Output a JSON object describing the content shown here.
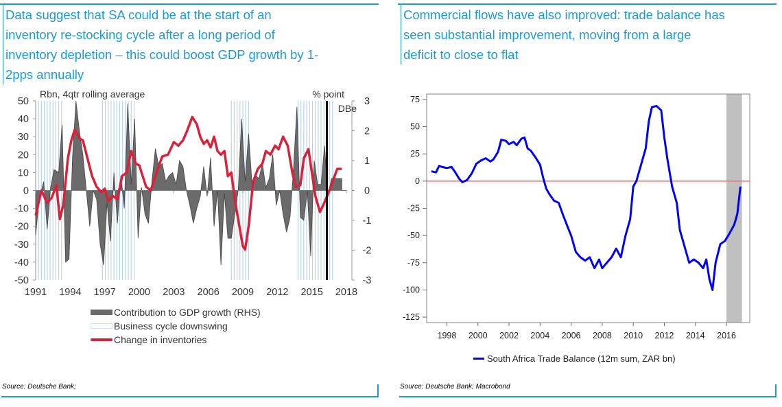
{
  "left_panel": {
    "title": "Data suggest that SA could be at the start of an inventory re-stocking cycle after a long period of inventory depletion – this could boost GDP growth by 1-2pps annually",
    "title_lines": [
      "Data suggest that SA could be at the start of an",
      "inventory re-stocking cycle after a long period of",
      "inventory depletion – this could boost GDP growth by 1-",
      "2pps annually"
    ],
    "source": "Source: Deutsche Bank;"
  },
  "right_panel": {
    "title_lines": [
      "Commercial flows have also improved: trade balance has",
      "seen substantial improvement, moving from a large",
      "deficit to close to flat"
    ],
    "source": "Source: Deutsche Bank; Macrobond"
  },
  "colors": {
    "accent": "#1a9bd7",
    "inventories_line": "#d9213a",
    "contribution_area": "#6b6b6b",
    "downswing_bands": "#b9d3ee",
    "trade_line": "#0000ff",
    "zero_line": "#ff6b6b",
    "forecast_shade": "#c0c0c0"
  },
  "chart_data": [
    {
      "type": "line",
      "subtype": "line + area (dual axis)",
      "ylabel_left": "Rbn, 4qtr rolling average",
      "ylabel_right": "% point",
      "annotation": "DBe",
      "ylim_left": [
        -50,
        50
      ],
      "ylim_right": [
        -3,
        3
      ],
      "yticks_left": [
        50,
        40,
        30,
        20,
        10,
        0,
        -10,
        -20,
        -30,
        -40,
        -50
      ],
      "yticks_right": [
        3,
        2,
        1,
        0,
        -1,
        -2,
        -3
      ],
      "xticks": [
        "1991",
        "1994",
        "1997",
        "2000",
        "2003",
        "2006",
        "2009",
        "2012",
        "2015",
        "2018"
      ],
      "xlim": [
        1991,
        2018
      ],
      "forecast_marker_x": 2016.3,
      "downswing_periods": [
        [
          1991.0,
          1993.3
        ],
        [
          1996.8,
          1999.6
        ],
        [
          2008.0,
          2009.5
        ],
        [
          2013.8,
          2016.8
        ]
      ],
      "legend": [
        "Contribution to GDP growth (RHS)",
        "Business cycle downswing",
        "Change in inventories"
      ],
      "series": [
        {
          "name": "Change in inventories",
          "axis": "left",
          "x": [
            1991.0,
            1991.5,
            1992.0,
            1992.4,
            1992.8,
            1993.1,
            1993.4,
            1993.8,
            1994.1,
            1994.4,
            1994.8,
            1995.1,
            1995.5,
            1995.9,
            1996.3,
            1996.7,
            1997.0,
            1997.3,
            1997.7,
            1998.1,
            1998.5,
            1998.9,
            1999.3,
            1999.7,
            2000.0,
            2000.3,
            2000.6,
            2001.0,
            2001.5,
            2002.0,
            2002.5,
            2003.0,
            2003.4,
            2003.8,
            2004.2,
            2004.6,
            2005.0,
            2005.3,
            2005.6,
            2005.9,
            2006.2,
            2006.5,
            2006.8,
            2007.1,
            2007.4,
            2007.7,
            2008.0,
            2008.3,
            2008.7,
            2009.0,
            2009.2,
            2009.5,
            2009.9,
            2010.3,
            2010.7,
            2011.0,
            2011.4,
            2011.8,
            2012.1,
            2012.5,
            2012.9,
            2013.3,
            2013.6,
            2014.0,
            2014.3,
            2014.7,
            2015.0,
            2015.3,
            2015.7,
            2016.0,
            2016.4,
            2016.8,
            2017.2,
            2017.6
          ],
          "values": [
            -14,
            0,
            -7,
            -4,
            3,
            -16,
            -8,
            18,
            28,
            34,
            29,
            28,
            18,
            8,
            2,
            -1,
            1,
            -6,
            -3,
            -5,
            8,
            10,
            22,
            15,
            14,
            8,
            2,
            0,
            10,
            19,
            20,
            27,
            25,
            28,
            34,
            41,
            37,
            30,
            26,
            28,
            24,
            30,
            22,
            20,
            22,
            8,
            10,
            -5,
            -20,
            -31,
            -33,
            -20,
            5,
            12,
            15,
            22,
            20,
            25,
            23,
            30,
            25,
            10,
            2,
            3,
            18,
            23,
            10,
            -3,
            -12,
            -8,
            -2,
            5,
            12,
            12
          ]
        },
        {
          "name": "Contribution to GDP growth (RHS)",
          "axis": "right",
          "type": "area",
          "x": [
            1991.0,
            1991.3,
            1991.7,
            1992.0,
            1992.3,
            1992.6,
            1993.0,
            1993.3,
            1993.6,
            1993.9,
            1994.2,
            1994.5,
            1994.8,
            1995.1,
            1995.4,
            1995.7,
            1996.0,
            1996.3,
            1996.6,
            1996.9,
            1997.2,
            1997.5,
            1997.8,
            1998.1,
            1998.4,
            1998.7,
            1999.0,
            1999.3,
            1999.6,
            1999.9,
            2000.2,
            2000.5,
            2000.8,
            2001.1,
            2001.4,
            2001.7,
            2002.0,
            2002.3,
            2002.6,
            2002.9,
            2003.2,
            2003.5,
            2003.8,
            2004.1,
            2004.4,
            2004.7,
            2005.0,
            2005.3,
            2005.6,
            2005.9,
            2006.2,
            2006.5,
            2006.8,
            2007.1,
            2007.4,
            2007.7,
            2008.0,
            2008.3,
            2008.6,
            2008.9,
            2009.2,
            2009.5,
            2009.8,
            2010.1,
            2010.4,
            2010.7,
            2011.0,
            2011.3,
            2011.6,
            2011.9,
            2012.2,
            2012.5,
            2012.8,
            2013.1,
            2013.4,
            2013.7,
            2014.0,
            2014.3,
            2014.6,
            2014.9,
            2015.2,
            2015.5,
            2015.8,
            2016.1,
            2016.4,
            2016.7,
            2017.0,
            2017.3,
            2017.6
          ],
          "values": [
            -1.5,
            -0.3,
            0.3,
            -1.3,
            0.1,
            0.7,
            0.6,
            2.2,
            -2.4,
            -2.3,
            1.1,
            3.0,
            2.0,
            1.2,
            0.0,
            -1.2,
            0.0,
            -0.3,
            -1.8,
            -2.5,
            -0.4,
            -1.7,
            0.6,
            -1.1,
            0.5,
            -0.6,
            2.9,
            0.2,
            2.4,
            -1.6,
            0.1,
            -0.8,
            -1.1,
            0.3,
            1.4,
            0.8,
            0.9,
            0.3,
            0.5,
            0.6,
            0.2,
            1.0,
            0.8,
            0.0,
            -0.5,
            -1.1,
            -0.6,
            -0.2,
            0.8,
            -0.2,
            1.1,
            -1.2,
            0.0,
            -2.5,
            -0.1,
            -1.6,
            -1.6,
            -0.8,
            0.0,
            2.4,
            0.3,
            1.9,
            0.2,
            0.5,
            0.4,
            0.9,
            0.1,
            0.4,
            1.2,
            -0.5,
            0.0,
            -0.8,
            -1.4,
            -0.9,
            0.7,
            2.8,
            -0.9,
            -1.0,
            0.0,
            -2.2,
            1.0,
            0.2,
            0.2,
            1.5,
            -0.2,
            0.4,
            0.4,
            0.4,
            0.4
          ]
        }
      ]
    },
    {
      "type": "line",
      "title": "",
      "xlabel": "",
      "ylabel": "",
      "ylim": [
        -130,
        80
      ],
      "yticks": [
        75,
        50,
        25,
        0,
        -25,
        -50,
        -75,
        -100,
        -125
      ],
      "xticks": [
        "1998",
        "2000",
        "2002",
        "2004",
        "2006",
        "2008",
        "2010",
        "2012",
        "2014",
        "2016"
      ],
      "xlim": [
        1996.7,
        2017.5
      ],
      "shaded_region": [
        2016.0,
        2017.0
      ],
      "reference_line": 0,
      "legend": [
        "South Africa Trade Balance (12m sum, ZAR bn)"
      ],
      "series": [
        {
          "name": "South Africa Trade Balance (12m sum, ZAR bn)",
          "x": [
            1997.0,
            1997.3,
            1997.5,
            1997.7,
            1998.0,
            1998.3,
            1998.5,
            1998.8,
            1999.0,
            1999.3,
            1999.6,
            1999.9,
            2000.2,
            2000.5,
            2000.8,
            2001.0,
            2001.3,
            2001.5,
            2001.8,
            2002.0,
            2002.3,
            2002.5,
            2002.8,
            2003.0,
            2003.2,
            2003.4,
            2003.7,
            2004.0,
            2004.2,
            2004.4,
            2004.6,
            2004.9,
            2005.2,
            2005.5,
            2005.8,
            2006.0,
            2006.3,
            2006.6,
            2006.9,
            2007.2,
            2007.5,
            2007.8,
            2008.0,
            2008.3,
            2008.6,
            2008.9,
            2009.2,
            2009.5,
            2009.8,
            2010.0,
            2010.2,
            2010.5,
            2010.8,
            2011.0,
            2011.2,
            2011.5,
            2011.8,
            2012.0,
            2012.2,
            2012.5,
            2012.8,
            2013.0,
            2013.3,
            2013.6,
            2013.9,
            2014.2,
            2014.5,
            2014.7,
            2014.9,
            2015.1,
            2015.3,
            2015.6,
            2015.9,
            2016.2,
            2016.5,
            2016.7,
            2016.9
          ],
          "values": [
            9,
            8,
            14,
            13,
            12,
            13,
            9,
            2,
            -1,
            1,
            7,
            16,
            19,
            21,
            18,
            20,
            27,
            38,
            37,
            34,
            36,
            33,
            39,
            40,
            30,
            28,
            22,
            15,
            3,
            -7,
            -12,
            -18,
            -20,
            -32,
            -43,
            -50,
            -65,
            -70,
            -73,
            -70,
            -80,
            -72,
            -80,
            -75,
            -70,
            -62,
            -70,
            -50,
            -35,
            -5,
            0,
            15,
            30,
            55,
            68,
            69,
            65,
            40,
            20,
            -5,
            -20,
            -45,
            -60,
            -75,
            -72,
            -75,
            -80,
            -72,
            -90,
            -100,
            -75,
            -58,
            -55,
            -48,
            -40,
            -30,
            -5
          ]
        }
      ]
    }
  ]
}
